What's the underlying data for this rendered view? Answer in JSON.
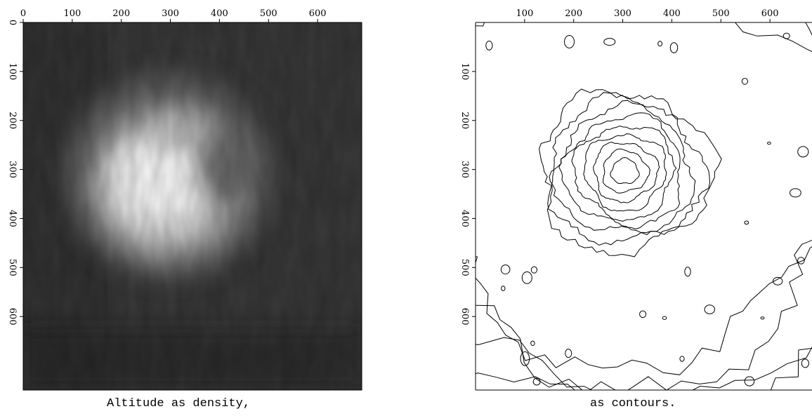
{
  "chart_data": [
    {
      "type": "heatmap",
      "title": "",
      "caption": "Altitude as density,",
      "colormap": "grayscale",
      "xlim": [
        0,
        690
      ],
      "ylim": [
        0,
        750
      ],
      "y_inverted": true,
      "x_ticks": [
        0,
        100,
        200,
        300,
        400,
        500,
        600
      ],
      "y_ticks": [
        0,
        100,
        200,
        300,
        400,
        500,
        600
      ],
      "x_axis_position": "top",
      "feature": {
        "peak_center": [
          290,
          300
        ],
        "peak_radius_approx": 130,
        "peak_intensity": 1.0,
        "background_intensity": 0.18
      }
    },
    {
      "type": "contour",
      "title": "",
      "caption": "as contours.",
      "xlim": [
        0,
        690
      ],
      "ylim": [
        0,
        750
      ],
      "y_inverted": true,
      "x_ticks": [
        100,
        200,
        300,
        400,
        500,
        600
      ],
      "y_ticks": [
        100,
        200,
        300,
        400,
        500,
        600
      ],
      "x_axis_position": "top",
      "feature": {
        "summit_center": [
          290,
          290
        ],
        "contour_levels": 13
      }
    }
  ]
}
